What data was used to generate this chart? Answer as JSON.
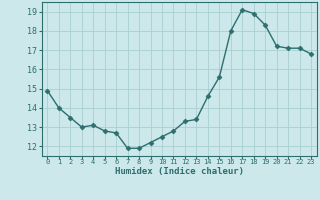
{
  "x": [
    0,
    1,
    2,
    3,
    4,
    5,
    6,
    7,
    8,
    9,
    10,
    11,
    12,
    13,
    14,
    15,
    16,
    17,
    18,
    19,
    20,
    21,
    22,
    23
  ],
  "y": [
    14.9,
    14.0,
    13.5,
    13.0,
    13.1,
    12.8,
    12.7,
    11.9,
    11.9,
    12.2,
    12.5,
    12.8,
    13.3,
    13.4,
    14.6,
    15.6,
    18.0,
    19.1,
    18.9,
    18.3,
    17.2,
    17.1,
    17.1,
    16.8
  ],
  "xlabel": "Humidex (Indice chaleur)",
  "ylim": [
    11.5,
    19.5
  ],
  "xlim": [
    -0.5,
    23.5
  ],
  "yticks": [
    12,
    13,
    14,
    15,
    16,
    17,
    18,
    19
  ],
  "xticks": [
    0,
    1,
    2,
    3,
    4,
    5,
    6,
    7,
    8,
    9,
    10,
    11,
    12,
    13,
    14,
    15,
    16,
    17,
    18,
    19,
    20,
    21,
    22,
    23
  ],
  "line_color": "#2d6e6e",
  "marker_color": "#2d6e6e",
  "bg_color": "#cce8ea",
  "grid_color": "#aacfd2",
  "axis_color": "#2d6e6e",
  "tick_label_color": "#2d6e6e",
  "xlabel_color": "#2d6e6e"
}
